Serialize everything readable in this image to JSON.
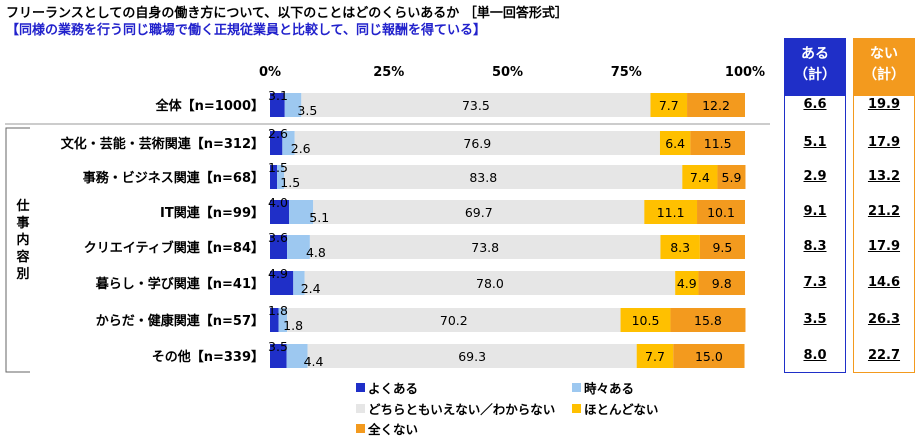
{
  "title": "フリーランスとしての自身の働き方について、以下のことはどのくらいあるか ［単一回答形式］",
  "subtitle": "【同様の業務を行う同じ職場で働く正規従業員と比較して、同じ報酬を得ている】",
  "side_label": "仕事内容別",
  "summary_headers": {
    "aru": "ある\n（計）",
    "nai": "ない\n（計）"
  },
  "colors": {
    "yoku": "#1f2fc8",
    "tokidoki": "#9dc8f0",
    "dochira": "#e6e6e6",
    "hotondo": "#ffc000",
    "mattaku": "#f39a1e"
  },
  "chart_data": {
    "type": "bar",
    "orientation": "horizontal-stacked-100",
    "xlim": [
      0,
      100
    ],
    "x_ticks": [
      "0%",
      "25%",
      "50%",
      "75%",
      "100%"
    ],
    "categories": [
      "全体【n=1000】",
      "文化・芸能・芸術関連【n=312】",
      "事務・ビジネス関連【n=68】",
      "IT関連【n=99】",
      "クリエイティブ関連【n=84】",
      "暮らし・学び関連【n=41】",
      "からだ・健康関連【n=57】",
      "その他【n=339】"
    ],
    "series": [
      {
        "name": "よくある",
        "values": [
          3.1,
          2.6,
          1.5,
          4.0,
          3.6,
          4.9,
          1.8,
          3.5
        ]
      },
      {
        "name": "時々ある",
        "values": [
          3.5,
          2.6,
          1.5,
          5.1,
          4.8,
          2.4,
          1.8,
          4.4
        ]
      },
      {
        "name": "どちらともいえない／わからない",
        "values": [
          73.5,
          76.9,
          83.8,
          69.7,
          73.8,
          78.0,
          70.2,
          69.3
        ]
      },
      {
        "name": "ほとんどない",
        "values": [
          7.7,
          6.4,
          7.4,
          11.1,
          8.3,
          4.9,
          10.5,
          7.7
        ]
      },
      {
        "name": "全くない",
        "values": [
          12.2,
          11.5,
          5.9,
          10.1,
          9.5,
          9.8,
          15.8,
          15.0
        ]
      }
    ],
    "aru_total": [
      "6.6",
      "5.1",
      "2.9",
      "9.1",
      "8.3",
      "7.3",
      "3.5",
      "8.0"
    ],
    "nai_total": [
      "19.9",
      "17.9",
      "13.2",
      "21.2",
      "17.9",
      "14.6",
      "26.3",
      "22.7"
    ],
    "legend_position": "bottom"
  }
}
